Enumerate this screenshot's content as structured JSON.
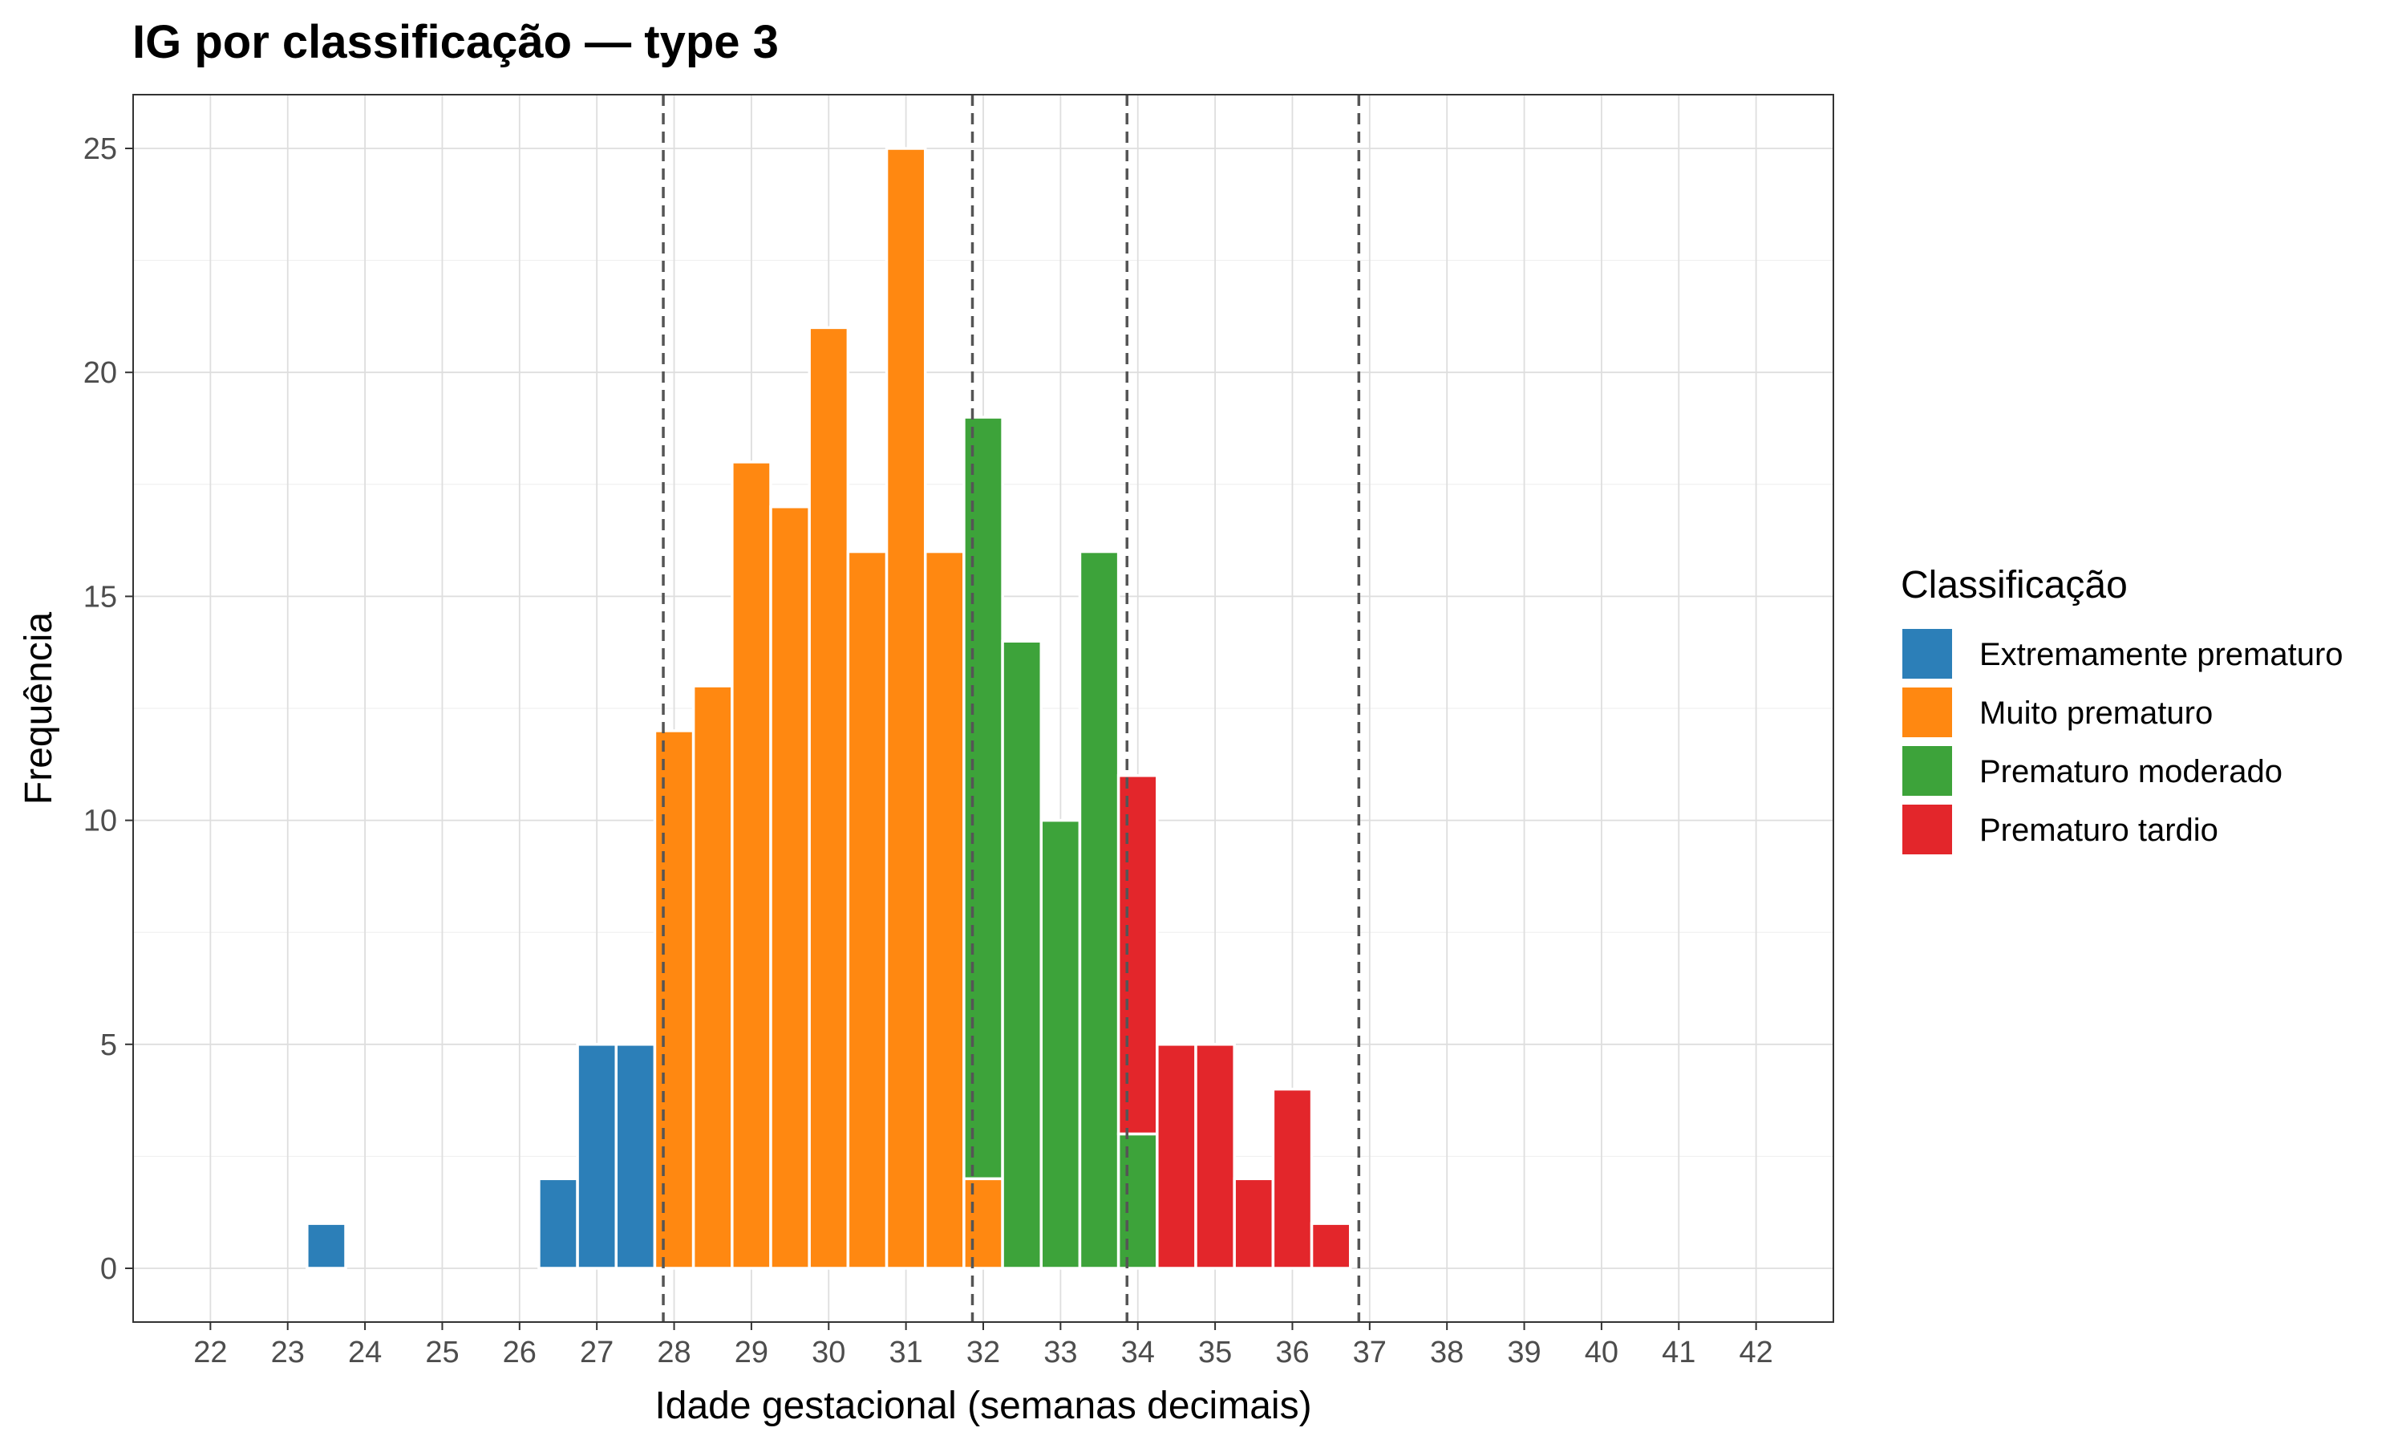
{
  "chart_data": {
    "type": "bar",
    "stacked": true,
    "title": "IG por classificação — type 3",
    "xlabel": "Idade gestacional (semanas decimais)",
    "ylabel": "Frequência",
    "xlim": [
      21.0,
      43.0
    ],
    "ylim": [
      -1.2,
      26.2
    ],
    "x_ticks": [
      22,
      23,
      24,
      25,
      26,
      27,
      28,
      29,
      30,
      31,
      32,
      33,
      34,
      35,
      36,
      37,
      38,
      39,
      40,
      41,
      42
    ],
    "y_ticks": [
      0,
      5,
      10,
      15,
      20,
      25
    ],
    "grid": true,
    "bin_width": 0.5,
    "x": [
      23.5,
      26.5,
      27.0,
      27.5,
      28.0,
      28.5,
      29.0,
      29.5,
      30.0,
      30.5,
      31.0,
      31.5,
      32.0,
      32.5,
      33.0,
      33.5,
      34.0,
      34.5,
      35.0,
      35.5,
      36.0,
      36.5
    ],
    "series": [
      {
        "name": "Extremamente prematuro",
        "color": "#2c7fb8",
        "values": [
          1,
          2,
          5,
          5,
          0,
          0,
          0,
          0,
          0,
          0,
          0,
          0,
          0,
          0,
          0,
          0,
          0,
          0,
          0,
          0,
          0,
          0
        ]
      },
      {
        "name": "Muito prematuro",
        "color": "#ff8811",
        "values": [
          0,
          0,
          0,
          0,
          12,
          13,
          18,
          17,
          21,
          16,
          25,
          16,
          2,
          0,
          0,
          0,
          0,
          0,
          0,
          0,
          0,
          0
        ]
      },
      {
        "name": "Prematuro moderado",
        "color": "#3da33a",
        "values": [
          0,
          0,
          0,
          0,
          0,
          0,
          0,
          0,
          0,
          0,
          0,
          0,
          17,
          14,
          10,
          16,
          3,
          0,
          0,
          0,
          0,
          0
        ]
      },
      {
        "name": "Prematuro tardio",
        "color": "#e3262b",
        "values": [
          0,
          0,
          0,
          0,
          0,
          0,
          0,
          0,
          0,
          0,
          0,
          0,
          0,
          0,
          0,
          0,
          8,
          5,
          5,
          2,
          4,
          1
        ]
      }
    ],
    "vlines": [
      27.86,
      31.86,
      33.86,
      36.86
    ],
    "vline_style": "dashed",
    "legend": {
      "title": "Classificação",
      "position": "right",
      "entries": [
        "Extremamente prematuro",
        "Muito prematuro",
        "Prematuro moderado",
        "Prematuro tardio"
      ]
    }
  }
}
